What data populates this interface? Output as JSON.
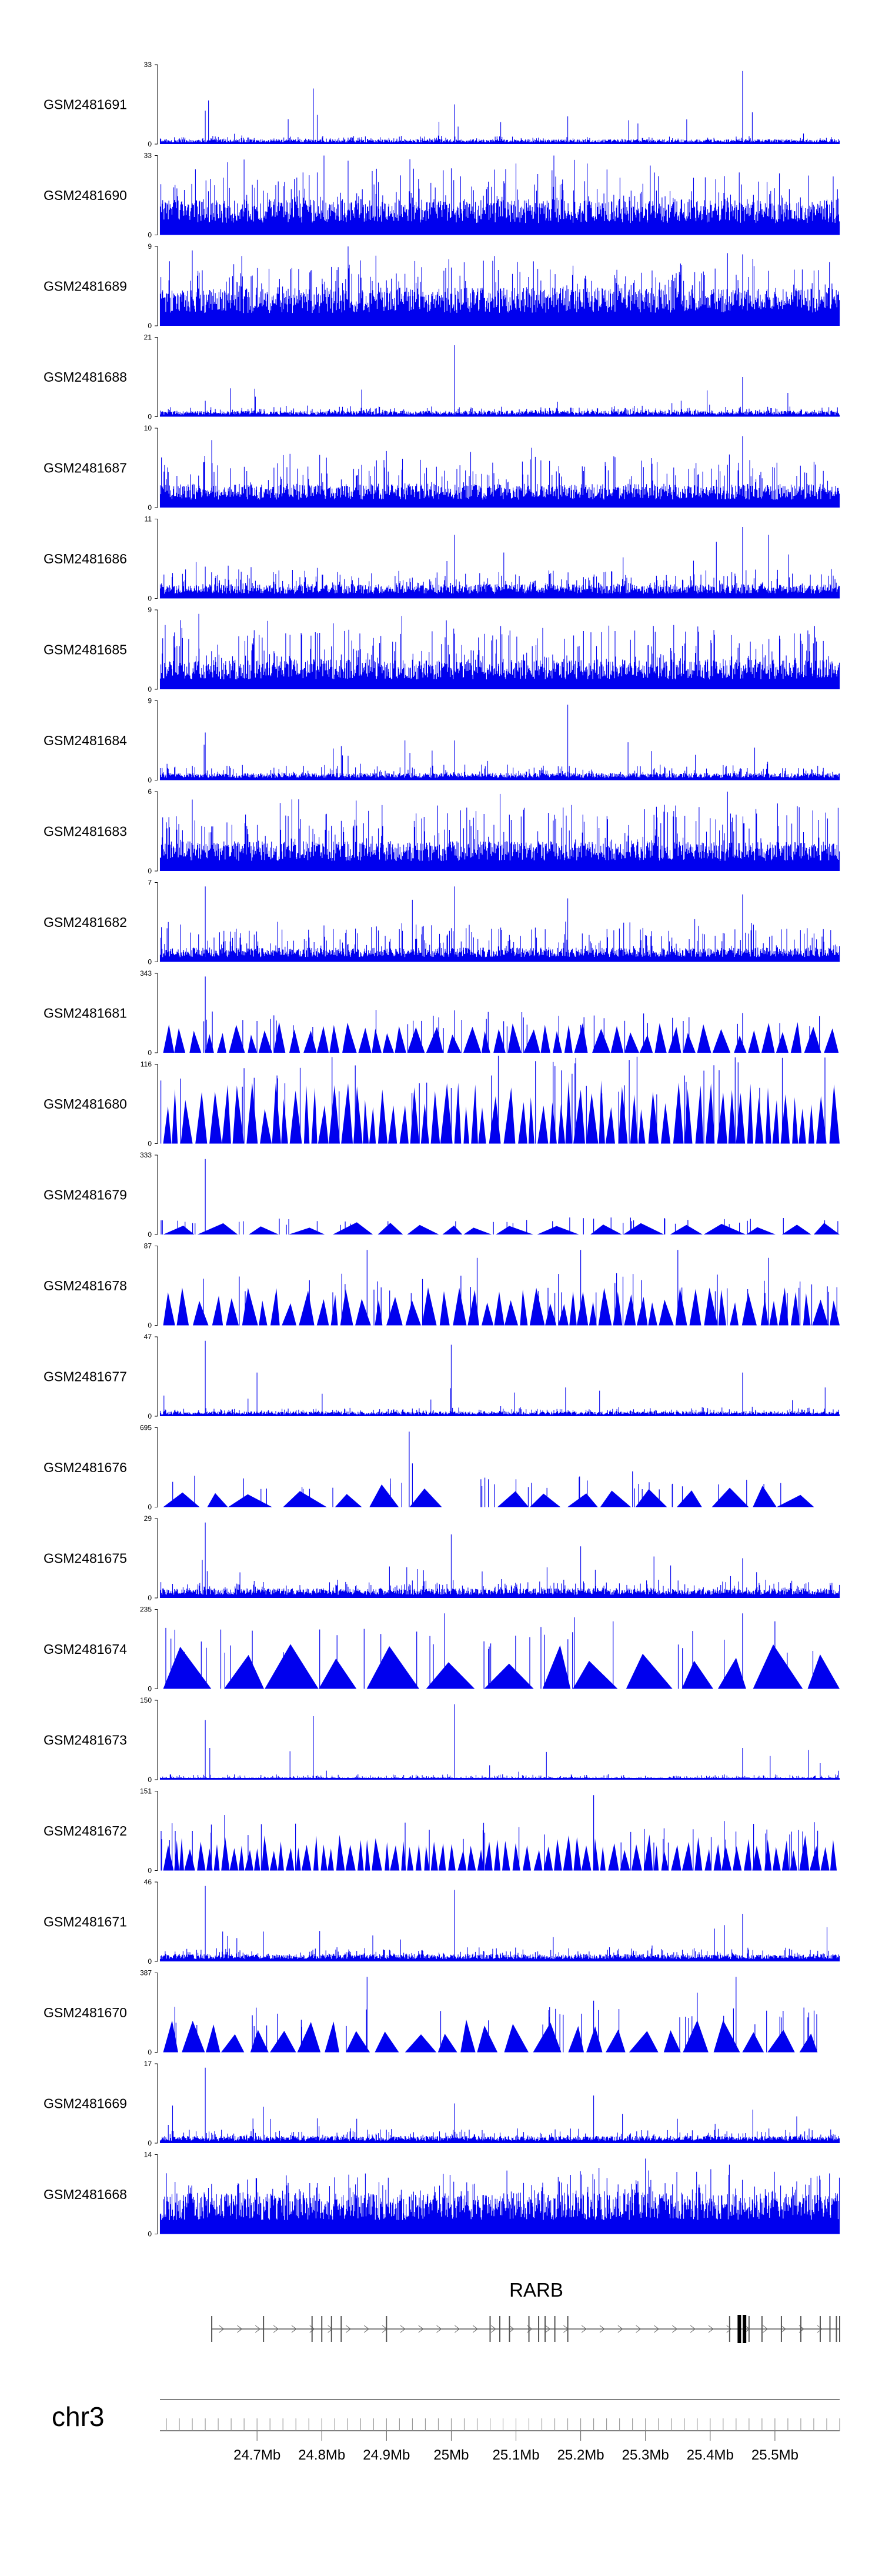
{
  "chart_data": {
    "type": "genome-browser-tracks",
    "chromosome": "chr3",
    "xlim_mb": [
      24.55,
      25.6
    ],
    "x_ticks": [
      {
        "value": 24.7,
        "label": "24.7Mb"
      },
      {
        "value": 24.8,
        "label": "24.8Mb"
      },
      {
        "value": 24.9,
        "label": "24.9Mb"
      },
      {
        "value": 25.0,
        "label": "25Mb"
      },
      {
        "value": 25.1,
        "label": "25.1Mb"
      },
      {
        "value": 25.2,
        "label": "25.2Mb"
      },
      {
        "value": 25.3,
        "label": "25.3Mb"
      },
      {
        "value": 25.4,
        "label": "25.4Mb"
      },
      {
        "value": 25.5,
        "label": "25.5Mb"
      }
    ],
    "color": "#0000ee",
    "tracks": [
      {
        "name": "GSM2481691",
        "ymin": 0,
        "ymax": 33,
        "style": "dense",
        "base": 0.04,
        "spread": 0.05,
        "peaks": [
          [
            24.62,
            0.42
          ],
          [
            24.625,
            0.55
          ],
          [
            24.787,
            0.7
          ],
          [
            25.005,
            0.5
          ],
          [
            25.18,
            0.35
          ],
          [
            25.45,
            0.92
          ],
          [
            25.465,
            0.4
          ]
        ]
      },
      {
        "name": "GSM2481690",
        "ymin": 0,
        "ymax": 33,
        "style": "dense",
        "base": 0.3,
        "spread": 0.45,
        "peaks": [
          [
            24.68,
            0.95
          ],
          [
            25.1,
            0.9
          ],
          [
            25.21,
            0.9
          ]
        ]
      },
      {
        "name": "GSM2481689",
        "ymin": 0,
        "ymax": 9,
        "style": "dense",
        "base": 0.32,
        "spread": 0.45,
        "peaks": [
          [
            24.6,
            0.95
          ],
          [
            25.02,
            0.8
          ],
          [
            25.45,
            0.9
          ]
        ]
      },
      {
        "name": "GSM2481688",
        "ymin": 0,
        "ymax": 21,
        "style": "dense",
        "base": 0.05,
        "spread": 0.07,
        "peaks": [
          [
            24.62,
            0.2
          ],
          [
            25.005,
            0.9
          ],
          [
            25.45,
            0.5
          ],
          [
            25.52,
            0.3
          ]
        ]
      },
      {
        "name": "GSM2481687",
        "ymin": 0,
        "ymax": 10,
        "style": "dense",
        "base": 0.2,
        "spread": 0.4,
        "peaks": [
          [
            24.63,
            0.85
          ],
          [
            25.03,
            0.7
          ],
          [
            25.45,
            0.9
          ]
        ]
      },
      {
        "name": "GSM2481686",
        "ymin": 0,
        "ymax": 11,
        "style": "dense",
        "base": 0.12,
        "spread": 0.2,
        "peaks": [
          [
            24.62,
            0.4
          ],
          [
            25.005,
            0.8
          ],
          [
            25.45,
            0.9
          ],
          [
            25.49,
            0.8
          ]
        ]
      },
      {
        "name": "GSM2481685",
        "ymin": 0,
        "ymax": 9,
        "style": "dense",
        "base": 0.25,
        "spread": 0.5,
        "peaks": [
          [
            24.61,
            0.95
          ],
          [
            25.005,
            0.7
          ]
        ]
      },
      {
        "name": "GSM2481684",
        "ymin": 0,
        "ymax": 9,
        "style": "dense",
        "base": 0.06,
        "spread": 0.12,
        "peaks": [
          [
            24.62,
            0.6
          ],
          [
            25.005,
            0.5
          ],
          [
            25.18,
            0.95
          ]
        ]
      },
      {
        "name": "GSM2481683",
        "ymin": 0,
        "ymax": 6,
        "style": "dense",
        "base": 0.25,
        "spread": 0.55,
        "peaks": [
          [
            24.6,
            0.9
          ]
        ]
      },
      {
        "name": "GSM2481682",
        "ymin": 0,
        "ymax": 7,
        "style": "dense",
        "base": 0.12,
        "spread": 0.35,
        "peaks": [
          [
            24.62,
            0.95
          ],
          [
            25.005,
            0.95
          ],
          [
            25.18,
            0.8
          ],
          [
            25.45,
            0.85
          ]
        ]
      },
      {
        "name": "GSM2481681",
        "ymin": 0,
        "ymax": 343,
        "style": "triangles",
        "tri_h": 0.3,
        "tri_w": 0.02,
        "spikes": [
          [
            24.62,
            0.96
          ],
          [
            24.7,
            0.4
          ],
          [
            25.2,
            0.35
          ],
          [
            25.45,
            0.5
          ]
        ],
        "gaps": []
      },
      {
        "name": "GSM2481680",
        "ymin": 0,
        "ymax": 116,
        "style": "triangles",
        "tri_h": 0.62,
        "tri_w": 0.014,
        "spikes": [
          [
            24.68,
            0.95
          ],
          [
            25.0,
            0.7
          ]
        ],
        "gaps": []
      },
      {
        "name": "GSM2481679",
        "ymin": 0,
        "ymax": 333,
        "style": "triangles",
        "tri_h": 0.12,
        "tri_w": 0.05,
        "spikes": [
          [
            24.62,
            0.95
          ],
          [
            25.22,
            0.2
          ],
          [
            25.33,
            0.2
          ]
        ],
        "gaps": []
      },
      {
        "name": "GSM2481678",
        "ymin": 0,
        "ymax": 87,
        "style": "triangles",
        "tri_h": 0.38,
        "tri_w": 0.018,
        "spikes": [
          [
            24.87,
            0.95
          ],
          [
            25.04,
            0.85
          ],
          [
            25.2,
            0.95
          ],
          [
            25.35,
            0.95
          ],
          [
            25.49,
            0.85
          ]
        ],
        "gaps": []
      },
      {
        "name": "GSM2481677",
        "ymin": 0,
        "ymax": 47,
        "style": "dense",
        "base": 0.04,
        "spread": 0.06,
        "peaks": [
          [
            24.62,
            0.95
          ],
          [
            24.7,
            0.55
          ],
          [
            25.0,
            0.9
          ],
          [
            25.45,
            0.55
          ]
        ]
      },
      {
        "name": "GSM2481676",
        "ymin": 0,
        "ymax": 695,
        "style": "triangles",
        "tri_h": 0.22,
        "tri_w": 0.05,
        "spikes": [
          [
            24.935,
            0.95
          ],
          [
            24.94,
            0.55
          ],
          [
            25.1,
            0.35
          ],
          [
            25.28,
            0.45
          ]
        ],
        "gaps": [
          [
            24.98,
            25.04
          ],
          [
            25.545,
            25.6
          ]
        ]
      },
      {
        "name": "GSM2481675",
        "ymin": 0,
        "ymax": 29,
        "style": "dense",
        "base": 0.08,
        "spread": 0.12,
        "peaks": [
          [
            24.62,
            0.95
          ],
          [
            25.0,
            0.8
          ],
          [
            25.2,
            0.65
          ],
          [
            25.45,
            0.5
          ]
        ]
      },
      {
        "name": "GSM2481674",
        "ymin": 0,
        "ymax": 235,
        "style": "triangles",
        "tri_h": 0.45,
        "tri_w": 0.06,
        "spikes": [
          [
            24.99,
            0.95
          ],
          [
            25.19,
            0.9
          ],
          [
            25.25,
            0.85
          ],
          [
            25.45,
            0.95
          ],
          [
            25.5,
            0.85
          ]
        ],
        "gaps": [
          [
            25.0,
            25.04
          ]
        ]
      },
      {
        "name": "GSM2481673",
        "ymin": 0,
        "ymax": 150,
        "style": "dense",
        "base": 0.02,
        "spread": 0.04,
        "peaks": [
          [
            24.62,
            0.75
          ],
          [
            24.627,
            0.4
          ],
          [
            24.787,
            0.8
          ],
          [
            25.005,
            0.95
          ],
          [
            25.45,
            0.4
          ]
        ]
      },
      {
        "name": "GSM2481672",
        "ymin": 0,
        "ymax": 151,
        "style": "triangles",
        "tri_h": 0.35,
        "tri_w": 0.012,
        "spikes": [
          [
            24.65,
            0.7
          ],
          [
            25.22,
            0.95
          ],
          [
            25.05,
            0.6
          ]
        ],
        "gaps": []
      },
      {
        "name": "GSM2481671",
        "ymin": 0,
        "ymax": 46,
        "style": "dense",
        "base": 0.06,
        "spread": 0.1,
        "peaks": [
          [
            24.62,
            0.95
          ],
          [
            25.005,
            0.9
          ],
          [
            25.45,
            0.6
          ]
        ]
      },
      {
        "name": "GSM2481670",
        "ymin": 0,
        "ymax": 387,
        "style": "triangles",
        "tri_h": 0.32,
        "tri_w": 0.035,
        "spikes": [
          [
            24.87,
            0.95
          ],
          [
            25.22,
            0.65
          ],
          [
            25.38,
            0.75
          ],
          [
            25.44,
            0.95
          ]
        ],
        "gaps": [
          [
            25.58,
            25.6
          ]
        ]
      },
      {
        "name": "GSM2481669",
        "ymin": 0,
        "ymax": 17,
        "style": "dense",
        "base": 0.06,
        "spread": 0.1,
        "peaks": [
          [
            24.62,
            0.95
          ],
          [
            25.005,
            0.5
          ],
          [
            25.22,
            0.6
          ]
        ]
      },
      {
        "name": "GSM2481668",
        "ymin": 0,
        "ymax": 14,
        "style": "dense",
        "base": 0.35,
        "spread": 0.35,
        "peaks": [
          [
            25.3,
            0.95
          ],
          [
            25.305,
            0.8
          ]
        ]
      }
    ],
    "gene": {
      "name": "RARB",
      "start_mb": 24.63,
      "end_mb": 25.6,
      "exons_mb": [
        24.63,
        24.71,
        24.785,
        24.8,
        24.815,
        24.83,
        24.9,
        25.06,
        25.075,
        25.09,
        25.12,
        25.135,
        25.145,
        25.16,
        25.18,
        25.43,
        25.445,
        25.453,
        25.46,
        25.48,
        25.51,
        25.54,
        25.57,
        25.585,
        25.595,
        25.6
      ]
    }
  }
}
